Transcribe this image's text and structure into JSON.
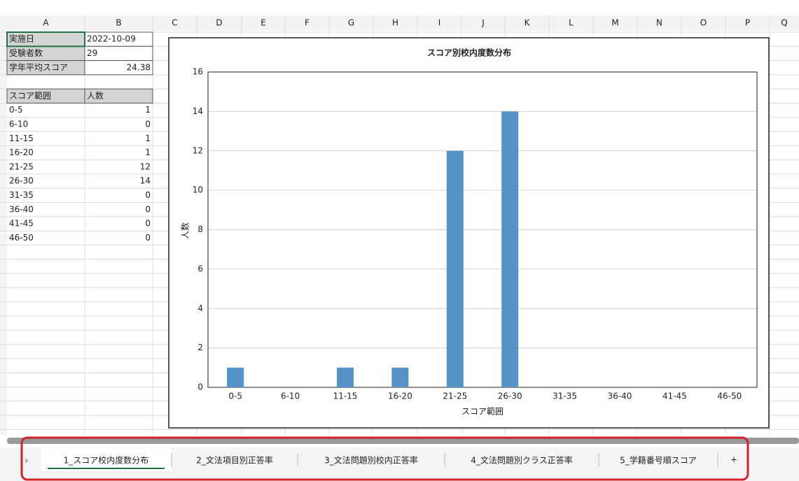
{
  "sheet": {
    "columns": [
      "A",
      "B",
      "C",
      "D",
      "E",
      "F",
      "G",
      "H",
      "I",
      "J",
      "K",
      "L",
      "M",
      "N",
      "O",
      "P",
      "Q"
    ],
    "info": [
      [
        "実施日",
        "2022-10-09"
      ],
      [
        "受験者数",
        29
      ],
      [
        "学年平均スコア",
        24.38
      ]
    ],
    "table_header": [
      "スコア範囲",
      "人数"
    ],
    "table_rows": [
      [
        "0-5",
        1
      ],
      [
        "6-10",
        0
      ],
      [
        "11-15",
        1
      ],
      [
        "16-20",
        1
      ],
      [
        "21-25",
        12
      ],
      [
        "26-30",
        14
      ],
      [
        "31-35",
        0
      ],
      [
        "36-40",
        0
      ],
      [
        "41-45",
        0
      ],
      [
        "46-50",
        0
      ]
    ]
  },
  "chart_data": {
    "type": "bar",
    "title": "スコア別校内度数分布",
    "xlabel": "スコア範囲",
    "ylabel": "人数",
    "categories": [
      "0-5",
      "6-10",
      "11-15",
      "16-20",
      "21-25",
      "26-30",
      "31-35",
      "36-40",
      "41-45",
      "46-50"
    ],
    "values": [
      1,
      0,
      1,
      1,
      12,
      14,
      0,
      0,
      0,
      0
    ],
    "color": "#5592c8",
    "ylim": [
      0,
      16
    ],
    "yticks": [
      0,
      2,
      4,
      6,
      8,
      10,
      12,
      14,
      16
    ],
    "grid": true
  },
  "tabs": [
    "1_スコア校内度数分布",
    "2_文法項目別正答率",
    "3_文法問題別校内正答率",
    "4_文法問題別クラス正答率",
    "5_学籍番号順スコア"
  ],
  "add_tab": "+"
}
